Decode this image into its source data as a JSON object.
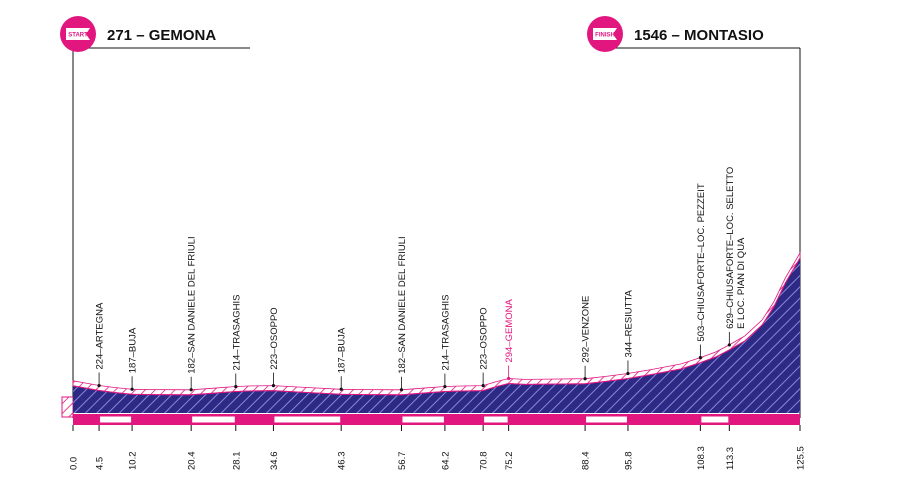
{
  "start": {
    "badge": "START",
    "label": "271 – GEMONA"
  },
  "finish": {
    "badge": "FINISH",
    "label": "1546 – MONTASIO"
  },
  "colors": {
    "accent": "#e2167f",
    "fill": "#2d2a86",
    "text": "#111111"
  },
  "chart_data": {
    "type": "area",
    "title": "",
    "xlabel": "",
    "ylabel": "",
    "xlim": [
      0,
      125.5
    ],
    "ylim": [
      0,
      1546
    ],
    "grid": false,
    "profile": {
      "x": [
        0,
        2,
        4.5,
        7,
        10.2,
        14,
        17,
        20.4,
        24,
        28.1,
        31,
        34.6,
        40,
        46.3,
        51,
        56.7,
        60,
        64.2,
        67,
        70.8,
        73,
        75.2,
        78,
        82,
        88.4,
        92,
        95.8,
        100,
        105,
        108.3,
        111,
        113.3,
        116,
        119,
        121,
        123,
        125.5
      ],
      "y": [
        271,
        250,
        224,
        205,
        187,
        184,
        183,
        182,
        196,
        214,
        220,
        223,
        205,
        187,
        184,
        182,
        196,
        214,
        219,
        223,
        262,
        294,
        285,
        288,
        292,
        315,
        344,
        385,
        440,
        503,
        560,
        629,
        720,
        880,
        1060,
        1300,
        1546
      ]
    },
    "km_ticks": [
      "0.0",
      "4.5",
      "10.2",
      "20.4",
      "28.1",
      "34.6",
      "46.3",
      "56.7",
      "64.2",
      "70.8",
      "75.2",
      "88.4",
      "95.8",
      "108.3",
      "113.3",
      "125.5"
    ],
    "waypoints": [
      {
        "label": "224–ARTEGNA",
        "km": 4.5,
        "alt": 224,
        "highlight": false
      },
      {
        "label": "187–BUJA",
        "km": 10.2,
        "alt": 187,
        "highlight": false
      },
      {
        "label": "182–SAN DANIELE DEL FRIULI",
        "km": 20.4,
        "alt": 182,
        "highlight": false
      },
      {
        "label": "214–TRASAGHIS",
        "km": 28.1,
        "alt": 214,
        "highlight": false
      },
      {
        "label": "223–OSOPPO",
        "km": 34.6,
        "alt": 223,
        "highlight": false
      },
      {
        "label": "187–BUJA",
        "km": 46.3,
        "alt": 187,
        "highlight": false
      },
      {
        "label": "182–SAN DANIELE DEL FRIULI",
        "km": 56.7,
        "alt": 182,
        "highlight": false
      },
      {
        "label": "214–TRASAGHIS",
        "km": 64.2,
        "alt": 214,
        "highlight": false
      },
      {
        "label": "223–OSOPPO",
        "km": 70.8,
        "alt": 223,
        "highlight": false
      },
      {
        "label": "294–GEMONA",
        "km": 75.2,
        "alt": 294,
        "highlight": true
      },
      {
        "label": "292–VENZONE",
        "km": 88.4,
        "alt": 292,
        "highlight": false
      },
      {
        "label": "344–RESIUTTA",
        "km": 95.8,
        "alt": 344,
        "highlight": false
      },
      {
        "label": "503–CHIUSAFORTE–LOC. PEZZEIT",
        "km": 108.3,
        "alt": 503,
        "highlight": false
      },
      {
        "label": [
          "629–CHIUSAFORTE–LOC. SELETTO",
          "E LOC. PIAN DI QUA"
        ],
        "km": 113.3,
        "alt": 629,
        "highlight": false
      }
    ]
  }
}
